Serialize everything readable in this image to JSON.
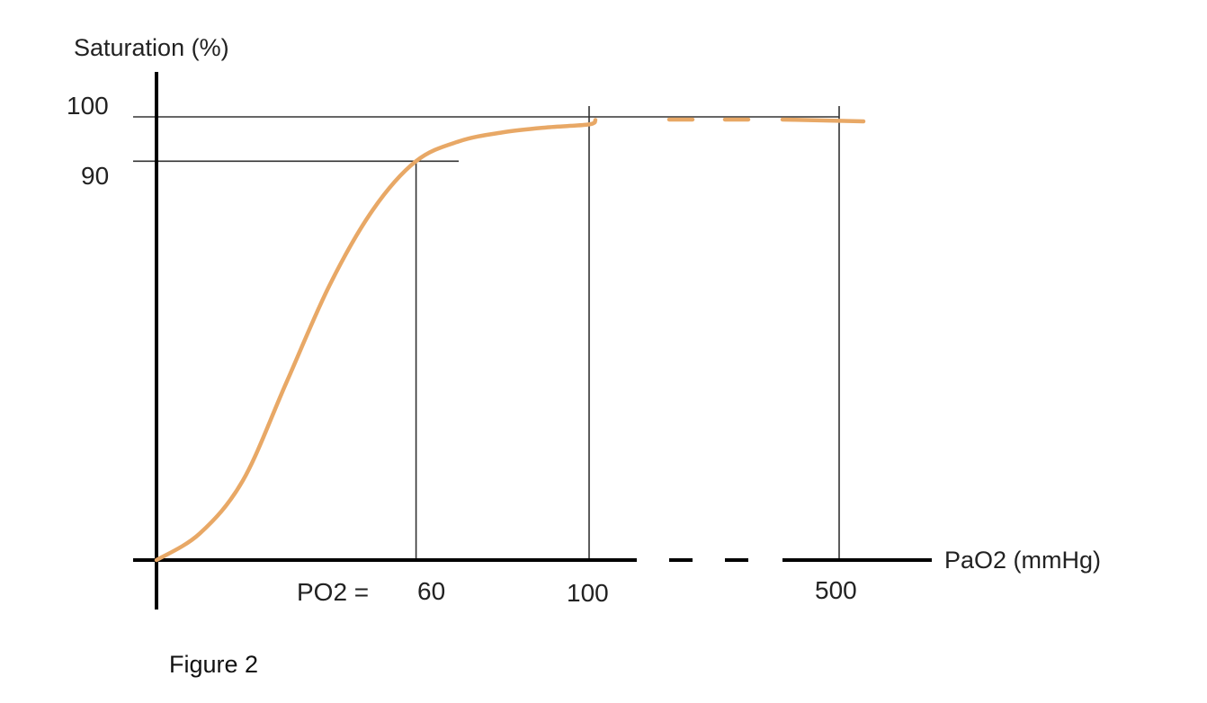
{
  "chart_data": {
    "type": "line",
    "title": "",
    "ylabel": "Saturation (%)",
    "xlabel": "PaO2 (mmHg)",
    "y_ticks": [
      "100",
      "90"
    ],
    "x_prefix": "PO2 =",
    "x_ticks": [
      "60",
      "100",
      "500"
    ],
    "axis_break": "dashed segment between 100 and 500",
    "series": [
      {
        "color": "#e8a866",
        "points": [
          [
            0,
            0
          ],
          [
            10,
            6
          ],
          [
            20,
            18
          ],
          [
            30,
            40
          ],
          [
            40,
            62
          ],
          [
            50,
            79
          ],
          [
            60,
            90
          ],
          [
            70,
            94.5
          ],
          [
            80,
            96.5
          ],
          [
            90,
            97.6
          ],
          [
            100,
            98.3
          ],
          [
            110,
            99.3
          ],
          [
            500,
            99.5
          ]
        ]
      }
    ],
    "reference_lines": [
      {
        "axis": "y",
        "value": 100
      },
      {
        "axis": "y",
        "value": 90
      },
      {
        "axis": "x",
        "value": 60
      },
      {
        "axis": "x",
        "value": 100
      },
      {
        "axis": "x",
        "value": 500
      }
    ]
  },
  "caption": "Figure 2"
}
